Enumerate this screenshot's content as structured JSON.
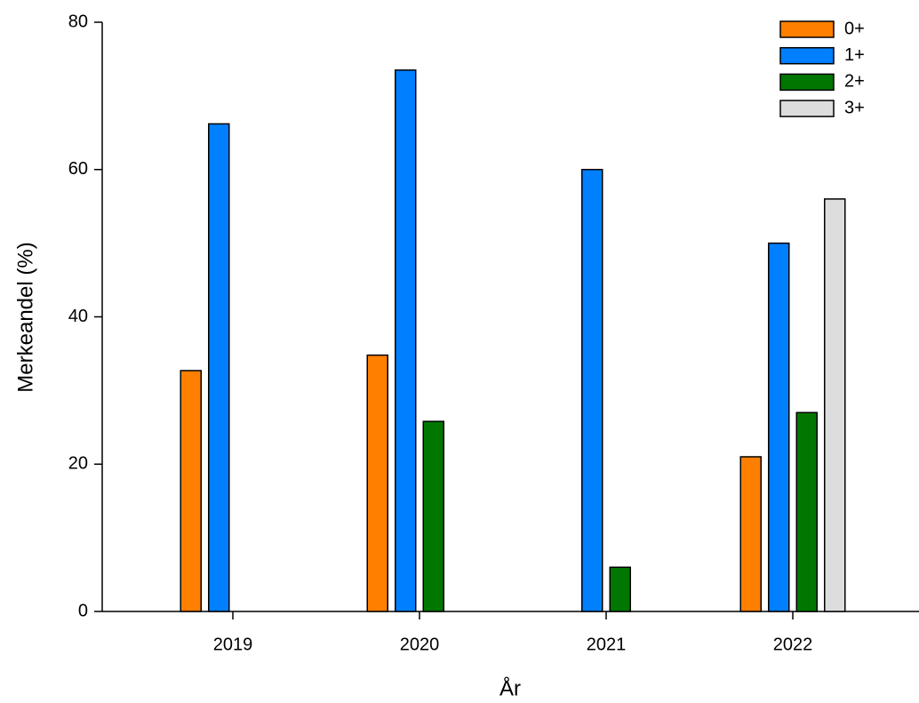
{
  "chart_data": {
    "type": "bar",
    "x_label": "År",
    "y_label": "Merkeandel (%)",
    "categories": [
      "2019",
      "2020",
      "2021",
      "2022"
    ],
    "series": [
      {
        "name": "0+",
        "color": "#ff7f00",
        "values": [
          32.7,
          34.8,
          null,
          21
        ]
      },
      {
        "name": "1+",
        "color": "#0080ff",
        "values": [
          66.2,
          73.5,
          60,
          50
        ]
      },
      {
        "name": "2+",
        "color": "#007700",
        "values": [
          null,
          25.8,
          6,
          27
        ]
      },
      {
        "name": "3+",
        "color": "#dddddd",
        "values": [
          null,
          null,
          null,
          56
        ]
      }
    ],
    "ylim": [
      0,
      80
    ],
    "yticks": [
      0,
      20,
      40,
      60,
      80
    ],
    "legend": "top-right"
  }
}
